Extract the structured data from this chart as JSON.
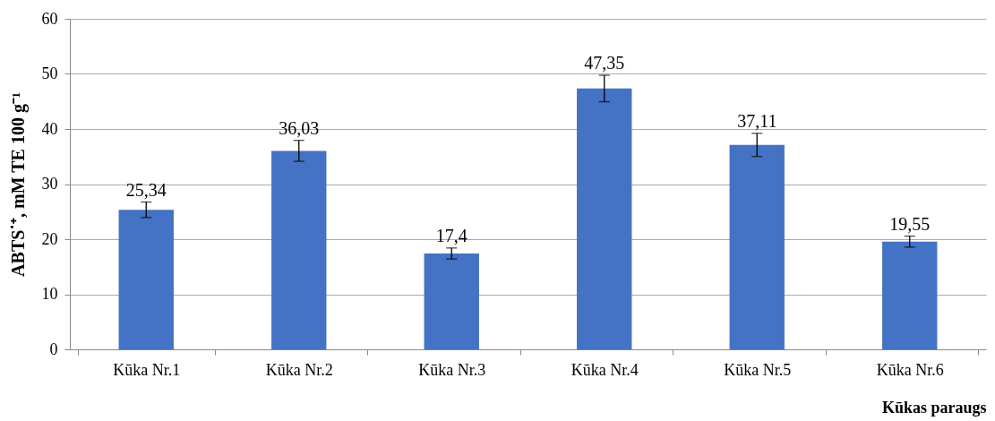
{
  "chart_data": {
    "type": "bar",
    "xlabel": "Kūkas paraugs",
    "ylabel": "ABTS˙⁺, mM TE 100 g⁻¹",
    "categories": [
      "Kūka Nr.1",
      "Kūka Nr.2",
      "Kūka Nr.3",
      "Kūka Nr.4",
      "Kūka Nr.5",
      "Kūka Nr.6"
    ],
    "values": [
      25.34,
      36.03,
      17.4,
      47.35,
      37.11,
      19.55
    ],
    "value_labels": [
      "25,34",
      "36,03",
      "17,4",
      "47,35",
      "37,11",
      "19,55"
    ],
    "errors": [
      1.4,
      1.9,
      1.0,
      2.4,
      2.1,
      1.0
    ],
    "color": "#4472c4",
    "ylim": [
      0,
      60
    ],
    "yticks": [
      0,
      10,
      20,
      30,
      40,
      50,
      60
    ],
    "grid": "y"
  }
}
